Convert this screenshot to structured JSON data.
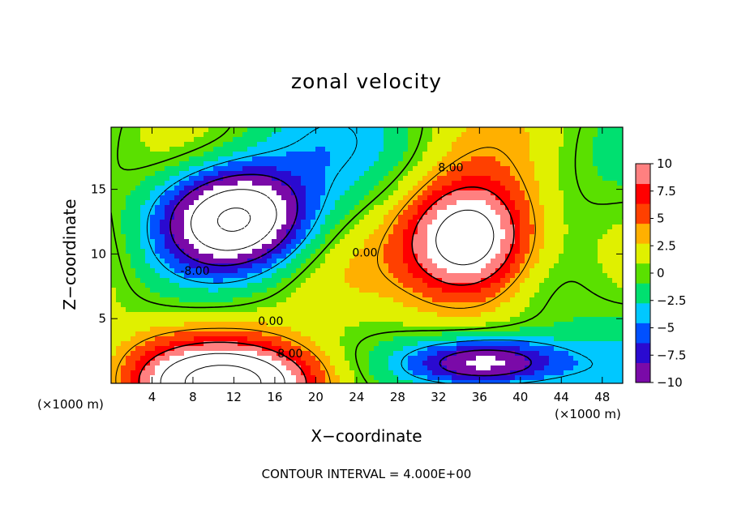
{
  "chart_data": {
    "type": "heatmap",
    "title": "zonal velocity",
    "xlabel": "X−coordinate",
    "ylabel": "Z−coordinate",
    "x_unit_label_left": "(×1000 m)",
    "x_unit_label_right": "(×1000 m)",
    "footer": "CONTOUR INTERVAL = 4.000E+00",
    "xlim": [
      0,
      50
    ],
    "ylim": [
      0,
      19.8
    ],
    "x_ticks": [
      4,
      8,
      12,
      16,
      20,
      24,
      28,
      32,
      36,
      40,
      44,
      48
    ],
    "y_ticks": [
      5,
      10,
      15
    ],
    "colorbar": {
      "range": [
        -10,
        10
      ],
      "tick_values": [
        10,
        7.5,
        5,
        2.5,
        0,
        -2.5,
        -5,
        -7.5,
        -10
      ],
      "tick_labels": [
        "10",
        "7.5",
        "5",
        "2.5",
        "0",
        "−2.5",
        "−5",
        "−7.5",
        "−10"
      ],
      "colors": [
        "#7a0aa8",
        "#2a0ad0",
        "#0050ff",
        "#00c8ff",
        "#00e070",
        "#5ae000",
        "#e0f000",
        "#ffb000",
        "#ff4000",
        "#ff0000",
        "#ff8080"
      ]
    },
    "contour_interval": 4,
    "contour_labels": [
      {
        "text": "8.00",
        "x": 33.2,
        "y": 16.4
      },
      {
        "text": "-8.00",
        "x": 8.2,
        "y": 8.4
      },
      {
        "text": "0.00",
        "x": 24.8,
        "y": 9.8
      },
      {
        "text": "0.00",
        "x": 15.6,
        "y": 4.5
      },
      {
        "text": "8.00",
        "x": 17.5,
        "y": 2.0
      }
    ],
    "features": [
      {
        "sign": "positive",
        "peak": 18,
        "cx": 35,
        "cy": 11,
        "rx": 6.2,
        "ry": 4.5
      },
      {
        "sign": "negative",
        "peak": -16,
        "cx": 12.3,
        "cy": 12.8,
        "rx": 6.8,
        "ry": 3.8
      },
      {
        "sign": "positive",
        "peak": 16,
        "cx": 12,
        "cy": 0,
        "rx": 9,
        "ry": 3.0
      },
      {
        "sign": "negative",
        "peak": -14,
        "cx": 36.5,
        "cy": 1.5,
        "rx": 7.5,
        "ry": 2.0
      }
    ]
  }
}
